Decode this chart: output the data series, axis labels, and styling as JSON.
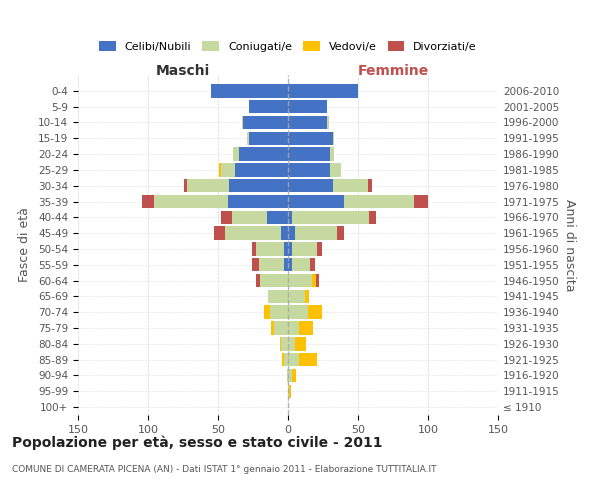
{
  "age_groups": [
    "100+",
    "95-99",
    "90-94",
    "85-89",
    "80-84",
    "75-79",
    "70-74",
    "65-69",
    "60-64",
    "55-59",
    "50-54",
    "45-49",
    "40-44",
    "35-39",
    "30-34",
    "25-29",
    "20-24",
    "15-19",
    "10-14",
    "5-9",
    "0-4"
  ],
  "birth_years": [
    "≤ 1910",
    "1911-1915",
    "1916-1920",
    "1921-1925",
    "1926-1930",
    "1931-1935",
    "1936-1940",
    "1941-1945",
    "1946-1950",
    "1951-1955",
    "1956-1960",
    "1961-1965",
    "1966-1970",
    "1971-1975",
    "1976-1980",
    "1981-1985",
    "1986-1990",
    "1991-1995",
    "1996-2000",
    "2001-2005",
    "2006-2010"
  ],
  "male": {
    "celibe": [
      0,
      0,
      0,
      0,
      0,
      0,
      0,
      0,
      0,
      3,
      3,
      5,
      15,
      43,
      42,
      38,
      35,
      28,
      32,
      28,
      55
    ],
    "coniugato": [
      0,
      0,
      1,
      3,
      5,
      10,
      13,
      14,
      20,
      18,
      20,
      40,
      25,
      53,
      30,
      10,
      4,
      1,
      1,
      0,
      0
    ],
    "vedovo": [
      0,
      0,
      0,
      1,
      1,
      2,
      4,
      0,
      0,
      0,
      0,
      0,
      0,
      0,
      0,
      1,
      0,
      0,
      0,
      0,
      0
    ],
    "divorziato": [
      0,
      0,
      0,
      0,
      0,
      0,
      0,
      0,
      3,
      5,
      3,
      8,
      8,
      8,
      2,
      0,
      0,
      0,
      0,
      0,
      0
    ]
  },
  "female": {
    "nubile": [
      0,
      0,
      0,
      0,
      0,
      0,
      0,
      0,
      0,
      3,
      3,
      5,
      3,
      40,
      32,
      30,
      30,
      32,
      28,
      28,
      50
    ],
    "coniugata": [
      0,
      1,
      3,
      8,
      5,
      8,
      14,
      12,
      17,
      13,
      18,
      30,
      55,
      50,
      25,
      8,
      3,
      1,
      1,
      0,
      0
    ],
    "vedova": [
      0,
      1,
      3,
      13,
      8,
      10,
      10,
      3,
      3,
      0,
      0,
      0,
      0,
      0,
      0,
      0,
      0,
      0,
      0,
      0,
      0
    ],
    "divorziata": [
      0,
      0,
      0,
      0,
      0,
      0,
      0,
      0,
      2,
      3,
      3,
      5,
      5,
      10,
      3,
      0,
      0,
      0,
      0,
      0,
      0
    ]
  },
  "colors": {
    "celibe": "#4472c4",
    "coniugato": "#c5d9a0",
    "vedovo": "#ffc000",
    "divorziato": "#c0504d"
  },
  "legend_labels": [
    "Celibi/Nubili",
    "Coniugati/e",
    "Vedovi/e",
    "Divorziati/e"
  ],
  "title": "Popolazione per età, sesso e stato civile - 2011",
  "subtitle": "COMUNE DI CAMERATA PICENA (AN) - Dati ISTAT 1° gennaio 2011 - Elaborazione TUTTITALIA.IT",
  "xlabel_left": "Maschi",
  "xlabel_right": "Femmine",
  "ylabel_left": "Fasce di età",
  "ylabel_right": "Anni di nascita",
  "xlim": 150,
  "background_color": "#ffffff",
  "grid_color": "#cccccc"
}
